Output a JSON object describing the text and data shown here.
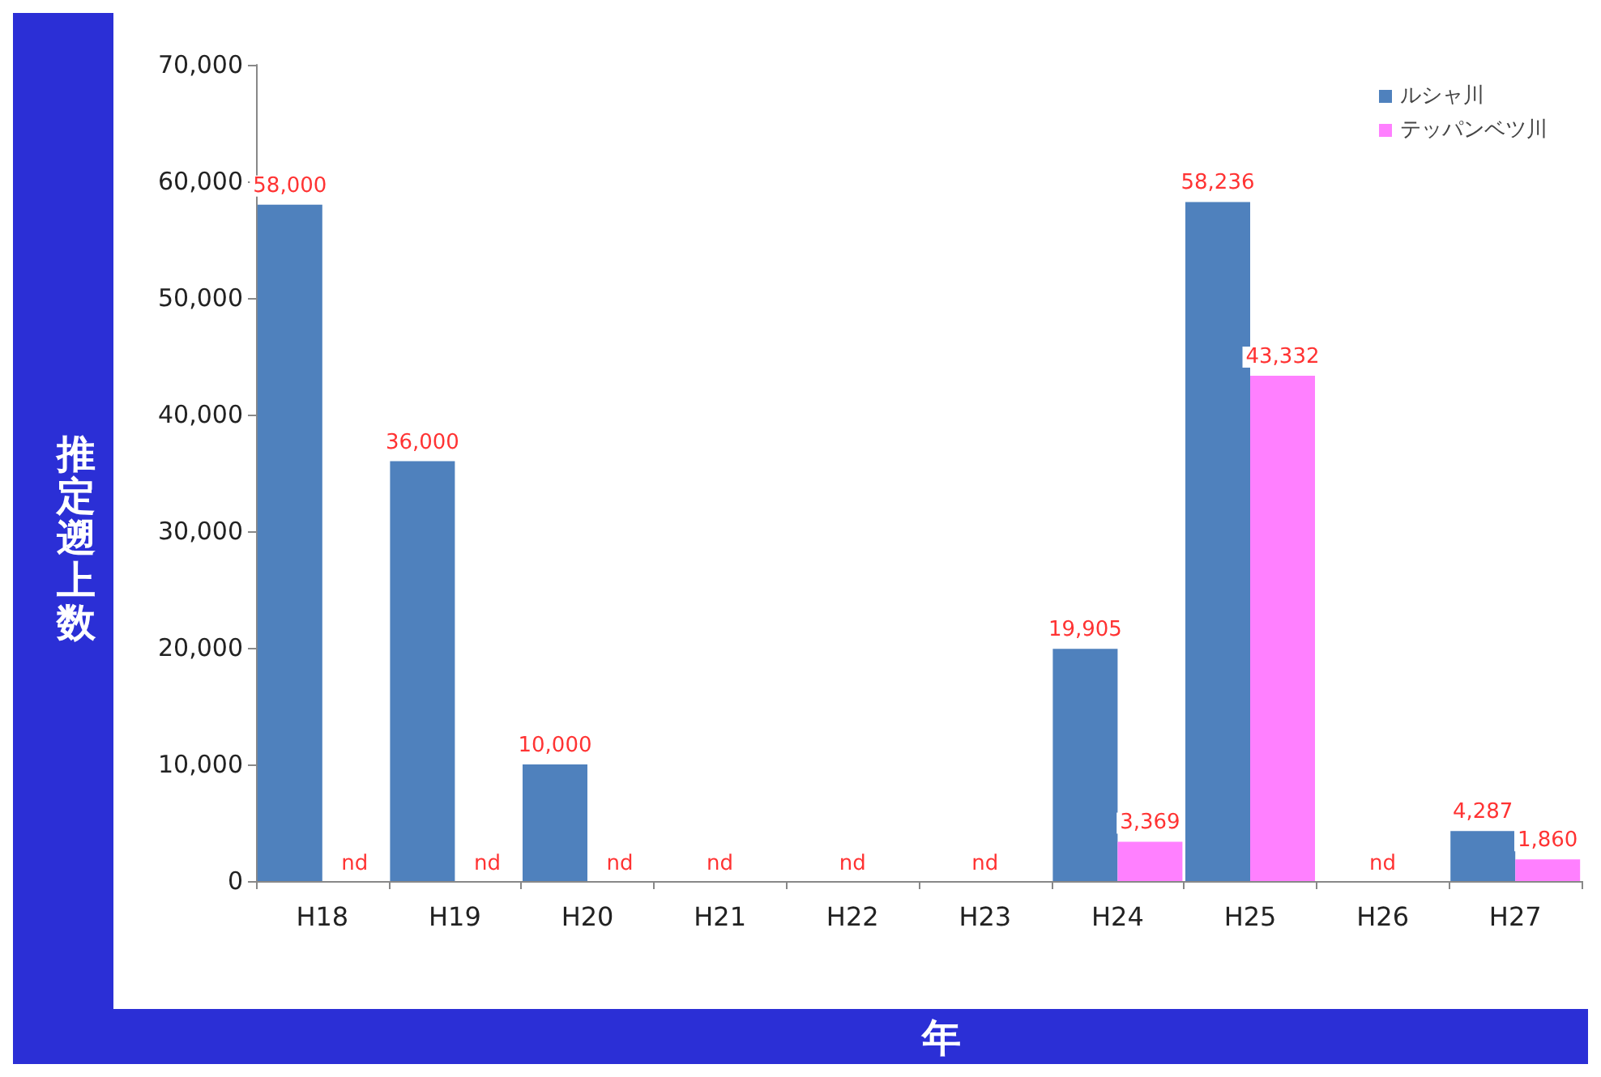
{
  "chart_data": {
    "type": "bar",
    "xlabel": "年",
    "ylabel": "推定遡上数",
    "categories": [
      "H18",
      "H19",
      "H20",
      "H21",
      "H22",
      "H23",
      "H24",
      "H25",
      "H26",
      "H27"
    ],
    "series": [
      {
        "name": "ルシャ川",
        "color": "#4f81bd",
        "values": [
          58000,
          36000,
          10000,
          null,
          null,
          null,
          19905,
          58236,
          null,
          4287
        ],
        "value_labels": [
          "58,000",
          "36,000",
          "10,000",
          "nd",
          "nd",
          "nd",
          "19,905",
          "58,236",
          "nd",
          "4,287"
        ]
      },
      {
        "name": "テッパンベツ川",
        "color": "#ff80ff",
        "values": [
          null,
          null,
          null,
          null,
          null,
          null,
          3369,
          43332,
          null,
          1860
        ],
        "value_labels": [
          "nd",
          "nd",
          "nd",
          null,
          null,
          null,
          "3,369",
          "43,332",
          null,
          "1,860"
        ]
      }
    ],
    "ylim": [
      0,
      70000
    ],
    "yticks": [
      0,
      {
        "value": 10000,
        "label": "10,000"
      },
      {
        "value": 20000,
        "label": "20,000"
      },
      {
        "value": 30000,
        "label": "30,000"
      },
      {
        "value": 40000,
        "label": "40,000"
      },
      {
        "value": 50000,
        "label": "50,000"
      },
      {
        "value": 60000,
        "label": "60,000"
      },
      {
        "value": 70000,
        "label": "70,000"
      }
    ],
    "grid": false,
    "legend": "top right"
  }
}
